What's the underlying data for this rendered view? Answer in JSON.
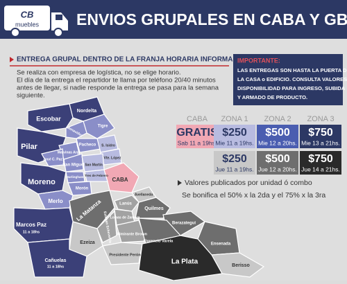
{
  "header": {
    "logo": [
      "CB",
      "muebles"
    ],
    "title": "ENVIOS GRUPALES EN CABA Y GBA"
  },
  "intro": {
    "heading": "ENTREGA GRUPAL DENTRO DE LA FRANJA HORARIA INFORMADA",
    "lines": [
      "Se realiza con empresa de logística, no se elige horario.",
      "El día de la entrega el repartidor te llama por teléfono 20/40 minutos",
      "antes de llegar, si nadie responde la entrega se pasa para la semana",
      "siguiente."
    ]
  },
  "notice": {
    "title": "IMPORTANTE:",
    "lines": [
      "LAS ENTREGAS SON HASTA LA PUERTA DE",
      "LA CASA o EDIFICIO. CONSULTA VALORES Y",
      "DISPONIBILIDAD PARA INGRESO, SUBIDA",
      "Y ARMADO DE PRODUCTO."
    ]
  },
  "prices": {
    "zones": [
      "CABA",
      "ZONA 1",
      "ZONA 2",
      "ZONA 3"
    ],
    "rows": [
      [
        {
          "price": "GRATIS",
          "schedule": "Sab 11 a 19hs."
        },
        {
          "price": "$250",
          "schedule": "Mie 11 a 19hs."
        },
        {
          "price": "$500",
          "schedule": "Mie 12 a 20hs."
        },
        {
          "price": "$750",
          "schedule": "Mie 13 a 21hs."
        }
      ],
      [
        null,
        {
          "price": "$250",
          "schedule": "Jue 11 a 19hs."
        },
        {
          "price": "$500",
          "schedule": "Jue 12 a 20hs."
        },
        {
          "price": "$750",
          "schedule": "Jue 14 a 21hs."
        }
      ]
    ]
  },
  "notes": [
    "Valores publicados por unidad ó combo",
    "Se bonifica el 50% x la 2da y el 75% x la 3ra"
  ],
  "map": {
    "regions": [
      {
        "label": "Nordelta"
      },
      {
        "label": "Escobar"
      },
      {
        "label": "Tigre"
      },
      {
        "label": "Benavidez"
      },
      {
        "label": "Pilar"
      },
      {
        "label": "Pacheco"
      },
      {
        "label": "Malvinas Arg."
      },
      {
        "label": "José C. Paz"
      },
      {
        "label": "S. Isidro"
      },
      {
        "label": "San Miguel"
      },
      {
        "label": "Vte. López"
      },
      {
        "label": "San Martín"
      },
      {
        "label": "Moreno"
      },
      {
        "label": "Hurlingham"
      },
      {
        "label": "Tres de Febrero"
      },
      {
        "label": "Morón"
      },
      {
        "label": "CABA"
      },
      {
        "label": "Merlo"
      },
      {
        "label": "La Matanza"
      },
      {
        "label": "Avellaneda"
      },
      {
        "label": "Lanús"
      },
      {
        "label": "Lomas de Zamora"
      },
      {
        "label": "Quilmes"
      },
      {
        "label": "Esteban Echeverria"
      },
      {
        "label": "Berazategui"
      },
      {
        "label": "Almirante Brown"
      },
      {
        "label": "Florencio Varela"
      },
      {
        "label": "Ezeiza"
      },
      {
        "label": "Presidente Perón"
      },
      {
        "label": "Ensenada"
      },
      {
        "label": "Berisso"
      },
      {
        "label": "La Plata"
      },
      {
        "label": "Marcos Paz",
        "schedule": "11 a 18hs"
      },
      {
        "label": "Cañuelas",
        "schedule": "11 a 18hs"
      }
    ]
  }
}
